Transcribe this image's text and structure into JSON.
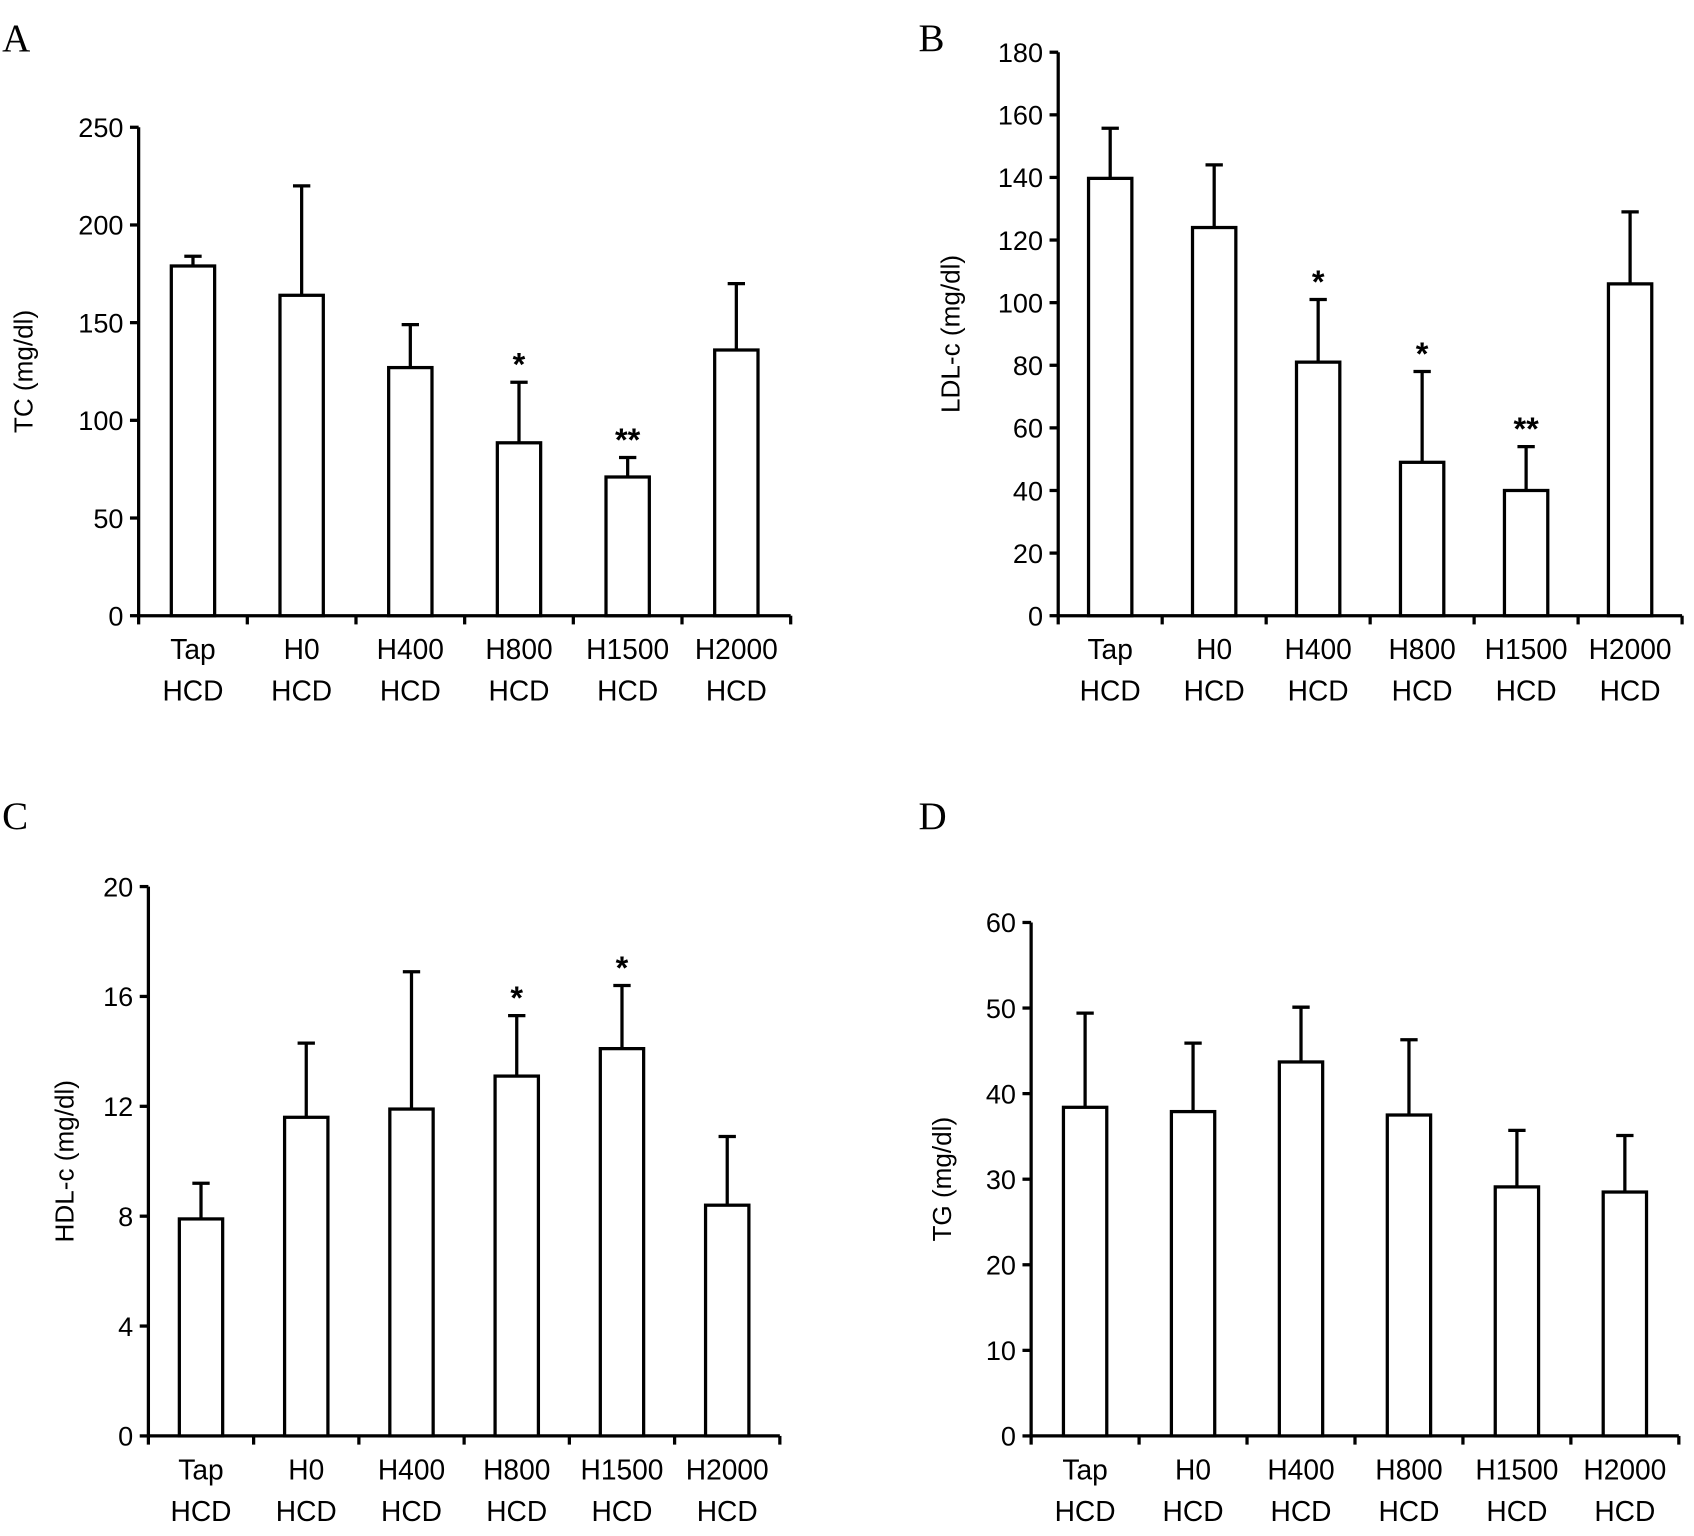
{
  "chart_data": [
    {
      "type": "bar",
      "panel": "A",
      "ylabel": "TC (mg/dl)",
      "categories": [
        [
          "Tap",
          "HCD"
        ],
        [
          "H0",
          "HCD"
        ],
        [
          "H400",
          "HCD"
        ],
        [
          "H800",
          "HCD"
        ],
        [
          "H1500",
          "HCD"
        ],
        [
          "H2000",
          "HCD"
        ]
      ],
      "values": [
        179,
        164,
        127,
        88.5,
        71,
        136
      ],
      "errors": [
        5,
        56,
        22,
        31,
        10,
        34
      ],
      "annotations": [
        null,
        null,
        null,
        "*",
        "**",
        null
      ],
      "ylim": [
        0,
        250
      ],
      "yticks": [
        0,
        50,
        100,
        150,
        200,
        250
      ],
      "color": "#ffffff"
    },
    {
      "type": "bar",
      "panel": "B",
      "ylabel": "LDL-c (mg/dl)",
      "categories": [
        [
          "Tap",
          "HCD"
        ],
        [
          "H0",
          "HCD"
        ],
        [
          "H400",
          "HCD"
        ],
        [
          "H800",
          "HCD"
        ],
        [
          "H1500",
          "HCD"
        ],
        [
          "H2000",
          "HCD"
        ]
      ],
      "values": [
        139.7,
        124,
        81,
        49,
        40,
        106
      ],
      "errors": [
        16,
        20,
        20,
        29,
        14,
        23
      ],
      "annotations": [
        null,
        null,
        "*",
        "*",
        "**",
        null
      ],
      "ylim": [
        0,
        180
      ],
      "yticks": [
        0,
        20,
        40,
        60,
        80,
        100,
        120,
        140,
        160,
        180
      ],
      "color": "#ffffff"
    },
    {
      "type": "bar",
      "panel": "C",
      "ylabel": "HDL-c (mg/dl)",
      "categories": [
        [
          "Tap",
          "HCD"
        ],
        [
          "H0",
          "HCD"
        ],
        [
          "H400",
          "HCD"
        ],
        [
          "H800",
          "HCD"
        ],
        [
          "H1500",
          "HCD"
        ],
        [
          "H2000",
          "HCD"
        ]
      ],
      "values": [
        7.9,
        11.6,
        11.9,
        13.1,
        14.1,
        8.4
      ],
      "errors": [
        1.3,
        2.7,
        5,
        2.2,
        2.3,
        2.5
      ],
      "annotations": [
        null,
        null,
        null,
        "*",
        "*",
        null
      ],
      "ylim": [
        0,
        20
      ],
      "yticks": [
        0,
        4,
        8,
        12,
        16,
        20
      ],
      "color": "#ffffff"
    },
    {
      "type": "bar",
      "panel": "D",
      "ylabel": "TG (mg/dl)",
      "categories": [
        [
          "Tap",
          "HCD"
        ],
        [
          "H0",
          "HCD"
        ],
        [
          "H400",
          "HCD"
        ],
        [
          "H800",
          "HCD"
        ],
        [
          "H1500",
          "HCD"
        ],
        [
          "H2000",
          "HCD"
        ]
      ],
      "values": [
        38.4,
        37.9,
        43.7,
        37.5,
        29.1,
        28.5
      ],
      "errors": [
        11,
        8,
        6.4,
        8.8,
        6.6,
        6.6
      ],
      "annotations": [
        null,
        null,
        null,
        null,
        null,
        null
      ],
      "ylim": [
        0,
        60
      ],
      "yticks": [
        0,
        10,
        20,
        30,
        40,
        50,
        60
      ],
      "color": "#ffffff"
    }
  ]
}
